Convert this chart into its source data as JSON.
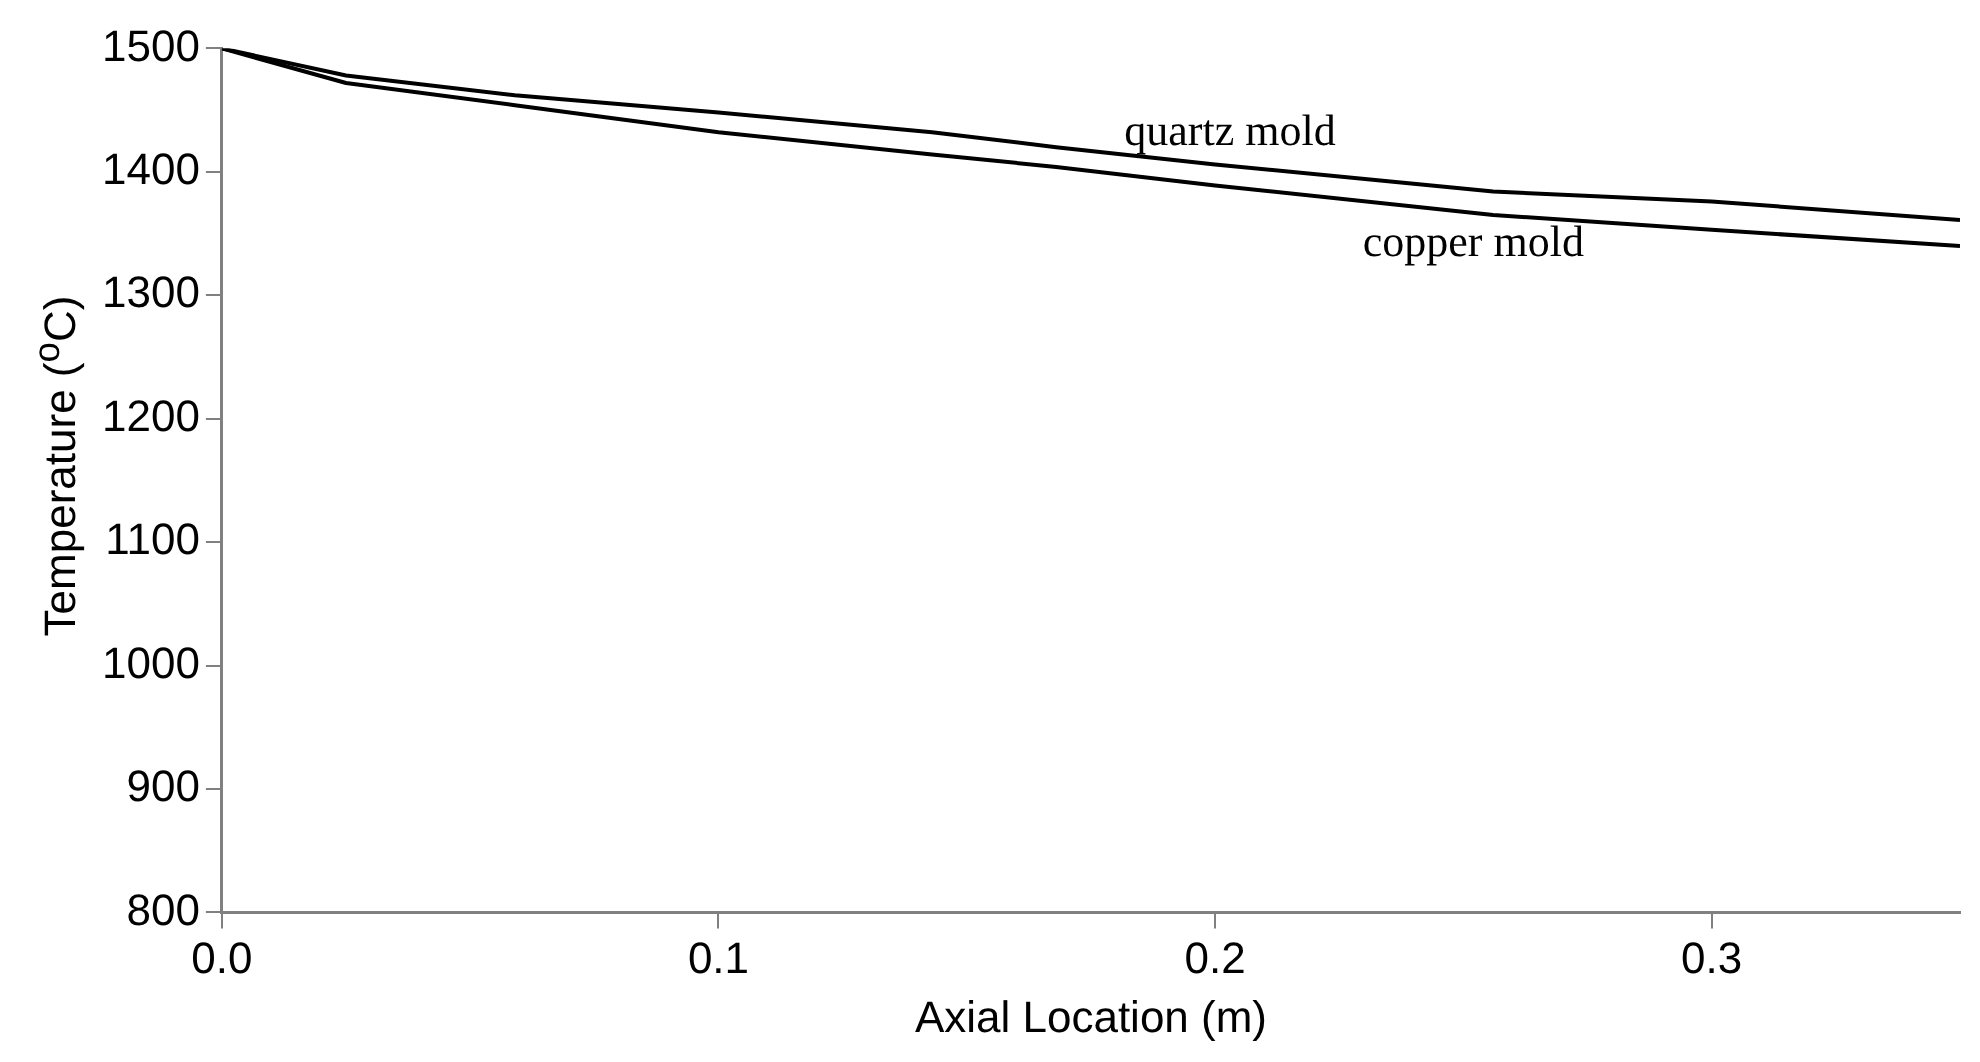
{
  "chart_data": {
    "type": "line",
    "xlabel": "Axial Location (m)",
    "ylabel": "Temperature ($^{o}$C)",
    "x": [
      0,
      0.025,
      0.059,
      0.1,
      0.143,
      0.168,
      0.2,
      0.256,
      0.3,
      0.35
    ],
    "series": [
      {
        "name": "quartz mold",
        "color": "#000000",
        "values": [
          1500,
          1478,
          1462,
          1448,
          1432,
          1420,
          1406,
          1384,
          1376,
          1361
        ]
      },
      {
        "name": "copper mold",
        "color": "#000000",
        "values": [
          1500,
          1472,
          1454,
          1432,
          1414,
          1404,
          1389,
          1365,
          1353,
          1340
        ]
      }
    ],
    "xlim": [
      0,
      0.35
    ],
    "ylim": [
      800,
      1500
    ],
    "xticks": [
      {
        "value": 0,
        "label": "0.0"
      },
      {
        "value": 0.1,
        "label": "0.1"
      },
      {
        "value": 0.2,
        "label": "0.2"
      },
      {
        "value": 0.3,
        "label": "0.3"
      }
    ],
    "yticks": [
      800,
      900,
      1000,
      1100,
      1200,
      1300,
      1400,
      1500
    ],
    "grid": false,
    "legend": false,
    "marker": "none",
    "line_style": "solid"
  }
}
